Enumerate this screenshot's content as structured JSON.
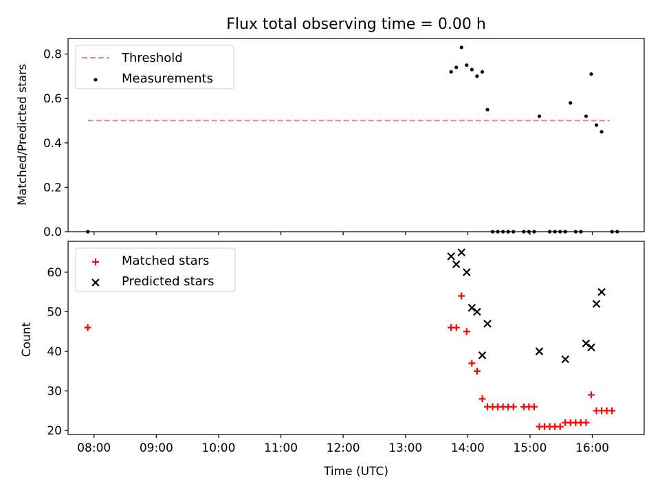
{
  "chart_data": {
    "type": "scatter",
    "title": "Flux total observing time = 0.00 h",
    "xlabel": "Time (UTC)",
    "x_axis_type": "time",
    "xlim": [
      "07:35",
      "16:50"
    ],
    "xticks": [
      "08:00",
      "09:00",
      "10:00",
      "11:00",
      "12:00",
      "13:00",
      "14:00",
      "15:00",
      "16:00"
    ],
    "shared_x": true,
    "panels": [
      {
        "name": "top",
        "ylabel": "Matched/Predicted stars",
        "ylim": [
          0,
          0.87
        ],
        "yticks": [
          "0.0",
          "0.2",
          "0.4",
          "0.6",
          "0.8"
        ],
        "ytick_values": [
          0,
          0.2,
          0.4,
          0.6,
          0.8
        ],
        "legend_position": "top-left",
        "series": [
          {
            "name": "Threshold",
            "type": "line",
            "style": "dashed",
            "color": "#ff7f7f",
            "x": [
              "07:54",
              "16:17"
            ],
            "y": [
              0.5,
              0.5
            ]
          },
          {
            "name": "Measurements",
            "type": "scatter",
            "marker": "dot",
            "color": "#000000",
            "x": [
              "07:54",
              "13:44",
              "13:49",
              "13:54",
              "13:59",
              "14:04",
              "14:09",
              "14:14",
              "14:19",
              "14:24",
              "14:29",
              "14:34",
              "14:39",
              "14:44",
              "14:54",
              "14:59",
              "15:04",
              "15:09",
              "15:19",
              "15:24",
              "15:29",
              "15:34",
              "15:39",
              "15:44",
              "15:49",
              "15:54",
              "15:59",
              "16:04",
              "16:09",
              "16:19",
              "16:24"
            ],
            "y": [
              0,
              0.72,
              0.74,
              0.83,
              0.75,
              0.73,
              0.7,
              0.72,
              0.55,
              0,
              0,
              0,
              0,
              0,
              0,
              0,
              0,
              0.52,
              0,
              0,
              0,
              0,
              0.58,
              0,
              0,
              0.52,
              0.71,
              0.48,
              0.45,
              0,
              0
            ]
          }
        ]
      },
      {
        "name": "bottom",
        "ylabel": "Count",
        "ylim": [
          19,
          67.8
        ],
        "yticks": [
          "20",
          "30",
          "40",
          "50",
          "60"
        ],
        "ytick_values": [
          20,
          30,
          40,
          50,
          60
        ],
        "legend_position": "top-left",
        "series": [
          {
            "name": "Matched stars",
            "type": "scatter",
            "marker": "plus",
            "color": "#ff0000",
            "x": [
              "07:54",
              "13:44",
              "13:49",
              "13:54",
              "13:59",
              "14:04",
              "14:09",
              "14:14",
              "14:19",
              "14:24",
              "14:29",
              "14:34",
              "14:39",
              "14:44",
              "14:54",
              "14:59",
              "15:04",
              "15:09",
              "15:14",
              "15:19",
              "15:24",
              "15:29",
              "15:34",
              "15:39",
              "15:44",
              "15:49",
              "15:54",
              "15:59",
              "16:04",
              "16:09",
              "16:14",
              "16:19"
            ],
            "y": [
              46,
              46,
              46,
              54,
              45,
              37,
              35,
              28,
              26,
              26,
              26,
              26,
              26,
              26,
              26,
              26,
              26,
              21,
              21,
              21,
              21,
              21,
              22,
              22,
              22,
              22,
              22,
              29,
              25,
              25,
              25,
              25
            ]
          },
          {
            "name": "Predicted stars",
            "type": "scatter",
            "marker": "x",
            "color": "#000000",
            "x": [
              "13:44",
              "13:49",
              "13:54",
              "13:59",
              "14:04",
              "14:09",
              "14:14",
              "14:19",
              "15:09",
              "15:34",
              "15:54",
              "15:59",
              "16:04",
              "16:09"
            ],
            "y": [
              64,
              62,
              65,
              60,
              51,
              50,
              39,
              47,
              40,
              38,
              42,
              41,
              52,
              55
            ]
          }
        ]
      }
    ]
  }
}
